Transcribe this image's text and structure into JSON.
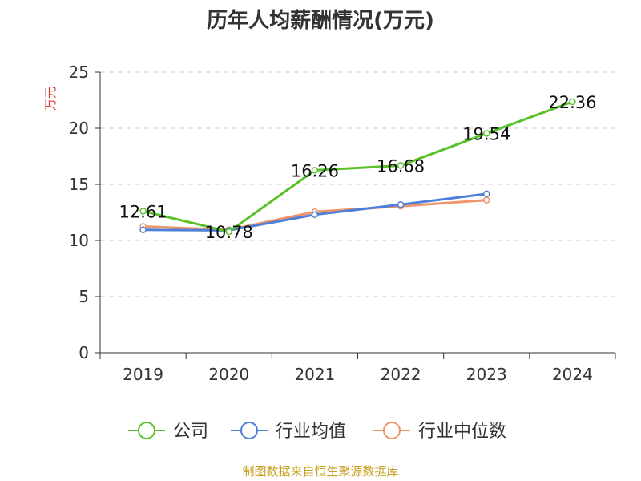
{
  "title": "历年人均薪酬情况(万元)",
  "source": "制图数据来自恒生聚源数据库",
  "chart_data": {
    "type": "line",
    "title": "历年人均薪酬情况(万元)",
    "ylabel": "万元",
    "xlabel": "",
    "categories": [
      "2019",
      "2020",
      "2021",
      "2022",
      "2023",
      "2024"
    ],
    "ylim": [
      0,
      25
    ],
    "yticks": [
      0,
      5,
      10,
      15,
      20,
      25
    ],
    "grid": "dashed-horizontal",
    "legend_position": "bottom",
    "series": [
      {
        "name": "公司",
        "color": "#5ac12a",
        "values": [
          12.61,
          10.78,
          16.26,
          16.68,
          19.54,
          22.36
        ],
        "labels": [
          "12.61",
          "10.78",
          "16.26",
          "16.68",
          "19.54",
          "22.36"
        ]
      },
      {
        "name": "行业均值",
        "color": "#4f7fd6",
        "values": [
          10.95,
          10.9,
          12.3,
          13.2,
          14.15,
          null
        ]
      },
      {
        "name": "行业中位数",
        "color": "#f0956a",
        "values": [
          11.25,
          10.95,
          12.55,
          13.05,
          13.6,
          null
        ]
      }
    ]
  }
}
